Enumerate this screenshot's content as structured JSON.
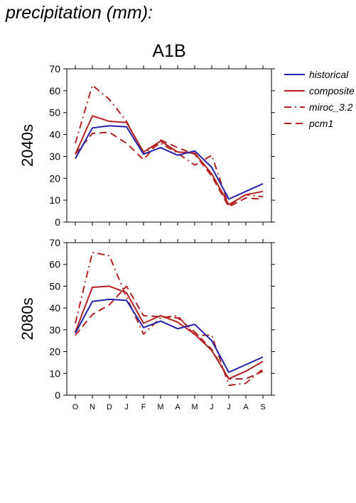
{
  "page_title": "precipitation (mm):",
  "chart_title": "A1B",
  "colors": {
    "historical": "#2222aa",
    "scenario": "#b22222"
  },
  "legend": [
    {
      "label": "historical",
      "style": "solid",
      "color": "#2222aa"
    },
    {
      "label": "composite",
      "style": "solid",
      "color": "#b22222"
    },
    {
      "label": "miroc_3.2",
      "style": "dashdot",
      "color": "#b22222"
    },
    {
      "label": "pcm1",
      "style": "dashed",
      "color": "#b22222"
    }
  ],
  "chart_data": [
    {
      "type": "line",
      "ylabel": "2040s",
      "ylim": [
        0,
        70
      ],
      "yticks": [
        0,
        10,
        20,
        30,
        40,
        50,
        60,
        70
      ],
      "categories": [
        "O",
        "N",
        "D",
        "J",
        "F",
        "M",
        "A",
        "M",
        "J",
        "J",
        "A",
        "S"
      ],
      "series": [
        {
          "name": "historical",
          "style": "solid",
          "color": "#2222aa",
          "values": [
            29,
            43,
            44,
            43.5,
            31,
            34,
            30.5,
            32.5,
            25,
            10.5,
            14,
            17.5
          ]
        },
        {
          "name": "composite",
          "style": "solid",
          "color": "#b22222",
          "values": [
            31,
            48.5,
            46,
            45.5,
            32,
            37,
            32,
            31.5,
            22,
            8,
            12.5,
            14
          ]
        },
        {
          "name": "miroc_3.2",
          "style": "dashdot",
          "color": "#b22222",
          "values": [
            36,
            62.5,
            56,
            46,
            31.5,
            36,
            31.5,
            26,
            30.5,
            7.5,
            12.5,
            11.5
          ]
        },
        {
          "name": "pcm1",
          "style": "dashed",
          "color": "#b22222",
          "values": [
            31,
            40.5,
            41,
            36,
            28.5,
            37.5,
            34,
            31,
            21,
            7,
            11,
            10.5
          ]
        }
      ]
    },
    {
      "type": "line",
      "ylabel": "2080s",
      "ylim": [
        0,
        70
      ],
      "yticks": [
        0,
        10,
        20,
        30,
        40,
        50,
        60,
        70
      ],
      "categories": [
        "O",
        "N",
        "D",
        "J",
        "F",
        "M",
        "A",
        "M",
        "J",
        "J",
        "A",
        "S"
      ],
      "series": [
        {
          "name": "historical",
          "style": "solid",
          "color": "#2222aa",
          "values": [
            28.5,
            43,
            44,
            43.5,
            31,
            34,
            30.5,
            32.5,
            25,
            10.5,
            14,
            17.5
          ]
        },
        {
          "name": "composite",
          "style": "solid",
          "color": "#b22222",
          "values": [
            29,
            49.5,
            50,
            47,
            33,
            36.5,
            33.5,
            28,
            20.5,
            7.5,
            11,
            15.5
          ]
        },
        {
          "name": "miroc_3.2",
          "style": "dashdot",
          "color": "#b22222",
          "values": [
            33,
            65.5,
            64,
            45,
            28,
            35.5,
            36.5,
            27.5,
            27.5,
            4.5,
            5.5,
            12
          ]
        },
        {
          "name": "pcm1",
          "style": "dashed",
          "color": "#b22222",
          "values": [
            27.5,
            37,
            41.5,
            50,
            36.5,
            36,
            35.5,
            29,
            21,
            7.5,
            7.5,
            11
          ]
        }
      ]
    }
  ]
}
